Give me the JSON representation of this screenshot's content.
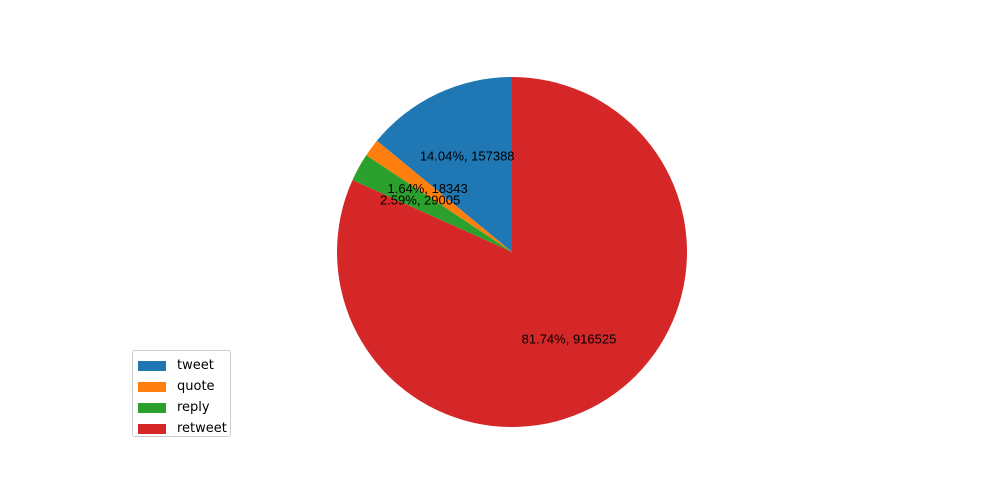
{
  "chart_data": {
    "type": "pie",
    "title": "",
    "start_angle_deg": 90,
    "direction": "counterclockwise",
    "slices": [
      {
        "name": "tweet",
        "value": 157388,
        "percent": 14.04,
        "label": "14.04%, 157388",
        "color": "#1f77b4"
      },
      {
        "name": "quote",
        "value": 18343,
        "percent": 1.64,
        "label": "1.64%, 18343",
        "color": "#ff7f0e"
      },
      {
        "name": "reply",
        "value": 29005,
        "percent": 2.59,
        "label": "2.59%, 29005",
        "color": "#2ca02c"
      },
      {
        "name": "retweet",
        "value": 916525,
        "percent": 81.74,
        "label": "81.74%, 916525",
        "color": "#d62728"
      }
    ],
    "legend": {
      "placement": "lower-left",
      "entries": [
        "tweet",
        "quote",
        "reply",
        "retweet"
      ]
    }
  }
}
